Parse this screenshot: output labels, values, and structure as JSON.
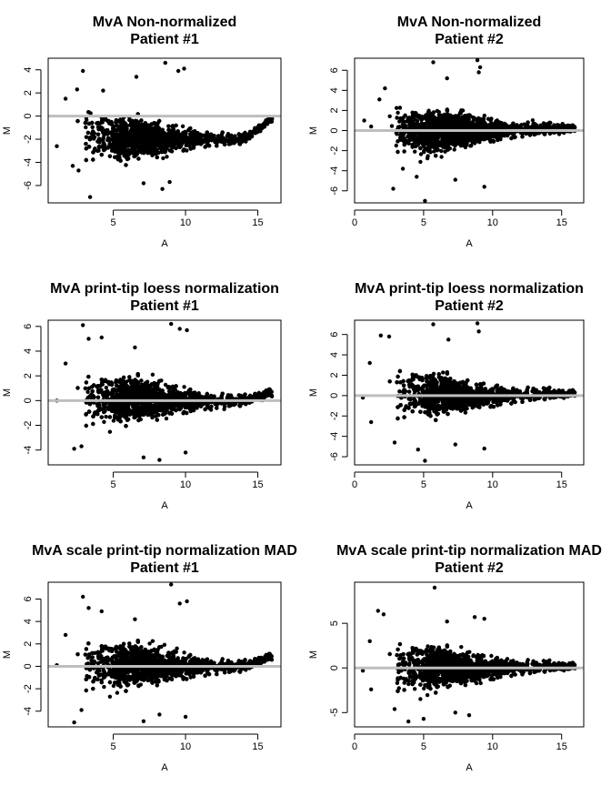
{
  "chart_data": [
    {
      "type": "scatter",
      "title": "MvA Non-normalized",
      "subtitle": "Patient #1",
      "xlabel": "A",
      "ylabel": "M",
      "xlim": [
        0.5,
        16.6
      ],
      "ylim": [
        -7.5,
        5
      ],
      "xticks": [
        5,
        10,
        15
      ],
      "yticks": [
        -6,
        -4,
        -2,
        0,
        2,
        4
      ],
      "xtick_labels": [
        "5",
        "10",
        "15"
      ],
      "ytick_labels": [
        "-6",
        "-4",
        "-2",
        "0",
        "2",
        "4"
      ],
      "reference_line": 0,
      "trend": [
        [
          2.5,
          -1.5
        ],
        [
          5,
          -2.0
        ],
        [
          8,
          -1.9
        ],
        [
          11,
          -1.9
        ],
        [
          14,
          -2.0
        ],
        [
          15.9,
          -0.3
        ]
      ],
      "spread": [
        [
          2.5,
          1.9
        ],
        [
          5,
          1.6
        ],
        [
          8,
          1.3
        ],
        [
          11,
          0.6
        ],
        [
          14,
          0.35
        ],
        [
          16,
          0.25
        ]
      ],
      "outliers": [
        [
          2.9,
          3.9
        ],
        [
          8.6,
          4.6
        ],
        [
          9.5,
          3.9
        ],
        [
          9.9,
          4.1
        ],
        [
          2.6,
          -4.7
        ],
        [
          3.4,
          -7.0
        ],
        [
          2.2,
          -4.3
        ],
        [
          4.3,
          2.2
        ],
        [
          1.7,
          1.5
        ],
        [
          2.5,
          2.3
        ],
        [
          8.4,
          -6.3
        ],
        [
          8.9,
          -5.7
        ],
        [
          1.1,
          -2.6
        ],
        [
          6.6,
          3.4
        ],
        [
          7.1,
          -5.8
        ]
      ]
    },
    {
      "type": "scatter",
      "title": "MvA Non-normalized",
      "subtitle": "Patient #2",
      "xlabel": "A",
      "ylabel": "M",
      "xlim": [
        0,
        16.6
      ],
      "ylim": [
        -7.2,
        7.2
      ],
      "xticks": [
        0,
        5,
        10,
        15
      ],
      "yticks": [
        -6,
        -4,
        -2,
        0,
        2,
        4,
        6
      ],
      "xtick_labels": [
        "0",
        "5",
        "10",
        "15"
      ],
      "ytick_labels": [
        "-6",
        "-4",
        "-2",
        "0",
        "2",
        "4",
        "6"
      ],
      "reference_line": 0,
      "trend": [
        [
          2.5,
          0.3
        ],
        [
          5,
          -0.2
        ],
        [
          8,
          0.0
        ],
        [
          11,
          0.1
        ],
        [
          14,
          0.2
        ],
        [
          16,
          0.2
        ]
      ],
      "spread": [
        [
          2.5,
          2.0
        ],
        [
          5,
          1.7
        ],
        [
          8,
          1.3
        ],
        [
          11,
          0.7
        ],
        [
          14,
          0.45
        ],
        [
          16,
          0.3
        ]
      ],
      "outliers": [
        [
          5.7,
          6.8
        ],
        [
          8.9,
          7.0
        ],
        [
          9.1,
          6.3
        ],
        [
          0.7,
          1.0
        ],
        [
          4.5,
          -4.6
        ],
        [
          5.1,
          -7.0
        ],
        [
          2.8,
          -5.8
        ],
        [
          2.2,
          4.2
        ],
        [
          1.8,
          3.1
        ],
        [
          9.4,
          -5.6
        ],
        [
          9.0,
          5.8
        ],
        [
          3.5,
          -3.8
        ],
        [
          6.7,
          5.2
        ],
        [
          7.3,
          -4.9
        ],
        [
          1.2,
          0.4
        ]
      ]
    },
    {
      "type": "scatter",
      "title": "MvA print-tip loess normalization",
      "subtitle": "Patient #1",
      "xlabel": "A",
      "ylabel": "M",
      "xlim": [
        0.5,
        16.6
      ],
      "ylim": [
        -5.2,
        6.5
      ],
      "xticks": [
        5,
        10,
        15
      ],
      "yticks": [
        -4,
        -2,
        0,
        2,
        4,
        6
      ],
      "xtick_labels": [
        "5",
        "10",
        "15"
      ],
      "ytick_labels": [
        "-4",
        "-2",
        "0",
        "2",
        "4",
        "6"
      ],
      "reference_line": 0,
      "trend": [
        [
          2.5,
          0.0
        ],
        [
          5,
          0.1
        ],
        [
          8,
          0.1
        ],
        [
          11,
          0.05
        ],
        [
          14,
          0.0
        ],
        [
          15.7,
          0.6
        ]
      ],
      "spread": [
        [
          2.5,
          1.8
        ],
        [
          5,
          1.5
        ],
        [
          8,
          1.3
        ],
        [
          11,
          0.6
        ],
        [
          14,
          0.35
        ],
        [
          16,
          0.3
        ]
      ],
      "outliers": [
        [
          2.9,
          6.1
        ],
        [
          9.0,
          6.2
        ],
        [
          9.6,
          5.8
        ],
        [
          10.1,
          5.7
        ],
        [
          2.3,
          -3.9
        ],
        [
          8.2,
          -4.8
        ],
        [
          10.0,
          -4.2
        ],
        [
          3.3,
          5.0
        ],
        [
          4.2,
          5.1
        ],
        [
          1.7,
          3.0
        ],
        [
          6.5,
          4.3
        ],
        [
          1.1,
          0.0
        ],
        [
          2.8,
          -3.7
        ],
        [
          7.1,
          -4.6
        ]
      ]
    },
    {
      "type": "scatter",
      "title": "MvA print-tip loess normalization",
      "subtitle": "Patient #2",
      "xlabel": "A",
      "ylabel": "M",
      "xlim": [
        0,
        16.6
      ],
      "ylim": [
        -6.8,
        7.4
      ],
      "xticks": [
        0,
        5,
        10,
        15
      ],
      "yticks": [
        -6,
        -4,
        -2,
        0,
        2,
        4,
        6
      ],
      "xtick_labels": [
        "0",
        "5",
        "10",
        "15"
      ],
      "ytick_labels": [
        "-6",
        "-4",
        "-2",
        "0",
        "2",
        "4",
        "6"
      ],
      "reference_line": 0,
      "trend": [
        [
          2.5,
          0.2
        ],
        [
          5,
          0.1
        ],
        [
          8,
          0.0
        ],
        [
          11,
          0.1
        ],
        [
          14,
          0.2
        ],
        [
          16,
          0.2
        ]
      ],
      "spread": [
        [
          2.5,
          2.1
        ],
        [
          5,
          1.8
        ],
        [
          8,
          1.3
        ],
        [
          11,
          0.7
        ],
        [
          14,
          0.45
        ],
        [
          16,
          0.3
        ]
      ],
      "outliers": [
        [
          5.7,
          7.0
        ],
        [
          8.9,
          7.1
        ],
        [
          9.0,
          6.3
        ],
        [
          0.6,
          -0.2
        ],
        [
          5.1,
          -6.4
        ],
        [
          4.6,
          -5.3
        ],
        [
          2.9,
          -4.6
        ],
        [
          1.9,
          5.9
        ],
        [
          2.5,
          5.8
        ],
        [
          9.4,
          -5.2
        ],
        [
          1.2,
          -2.6
        ],
        [
          1.1,
          3.2
        ],
        [
          6.8,
          5.5
        ],
        [
          7.3,
          -4.8
        ]
      ]
    },
    {
      "type": "scatter",
      "title": "MvA scale print-tip normalization MAD",
      "subtitle": "Patient #1",
      "xlabel": "A",
      "ylabel": "M",
      "xlim": [
        0.5,
        16.6
      ],
      "ylim": [
        -5.4,
        7.5
      ],
      "xticks": [
        5,
        10,
        15
      ],
      "yticks": [
        -4,
        -2,
        0,
        2,
        4,
        6
      ],
      "xtick_labels": [
        "5",
        "10",
        "15"
      ],
      "ytick_labels": [
        "-4",
        "-2",
        "0",
        "2",
        "4",
        "6"
      ],
      "reference_line": 0,
      "trend": [
        [
          2.5,
          0.0
        ],
        [
          5,
          0.1
        ],
        [
          8,
          0.1
        ],
        [
          11,
          0.05
        ],
        [
          14,
          0.0
        ],
        [
          15.7,
          0.8
        ]
      ],
      "spread": [
        [
          2.5,
          1.9
        ],
        [
          5,
          1.6
        ],
        [
          8,
          1.4
        ],
        [
          11,
          0.7
        ],
        [
          14,
          0.4
        ],
        [
          16,
          0.3
        ]
      ],
      "outliers": [
        [
          2.9,
          6.2
        ],
        [
          9.0,
          7.3
        ],
        [
          9.6,
          5.6
        ],
        [
          10.1,
          5.8
        ],
        [
          2.3,
          -5.0
        ],
        [
          8.2,
          -4.3
        ],
        [
          10.0,
          -4.5
        ],
        [
          3.3,
          5.2
        ],
        [
          4.2,
          4.9
        ],
        [
          1.7,
          2.8
        ],
        [
          6.5,
          4.2
        ],
        [
          1.1,
          0.1
        ],
        [
          2.8,
          -3.9
        ],
        [
          7.1,
          -4.9
        ]
      ]
    },
    {
      "type": "scatter",
      "title": "MvA scale print-tip normalization MAD",
      "subtitle": "Patient #2",
      "xlabel": "A",
      "ylabel": "M",
      "xlim": [
        0,
        16.6
      ],
      "ylim": [
        -6.6,
        9.6
      ],
      "xticks": [
        0,
        5,
        10,
        15
      ],
      "yticks": [
        -5,
        0,
        5
      ],
      "xtick_labels": [
        "0",
        "5",
        "10",
        "15"
      ],
      "ytick_labels": [
        "-5",
        "0",
        "5"
      ],
      "reference_line": 0,
      "trend": [
        [
          2.5,
          0.2
        ],
        [
          5,
          0.0
        ],
        [
          8,
          0.0
        ],
        [
          11,
          0.1
        ],
        [
          14,
          0.2
        ],
        [
          16,
          0.2
        ]
      ],
      "spread": [
        [
          2.5,
          2.4
        ],
        [
          5,
          2.0
        ],
        [
          8,
          1.5
        ],
        [
          11,
          0.8
        ],
        [
          14,
          0.5
        ],
        [
          16,
          0.35
        ]
      ],
      "outliers": [
        [
          5.8,
          9.0
        ],
        [
          1.7,
          6.4
        ],
        [
          2.1,
          6.0
        ],
        [
          8.7,
          5.7
        ],
        [
          0.6,
          -0.3
        ],
        [
          5.0,
          -5.7
        ],
        [
          3.9,
          -6.0
        ],
        [
          8.3,
          -5.3
        ],
        [
          1.1,
          3.0
        ],
        [
          1.2,
          -2.4
        ],
        [
          6.7,
          5.2
        ],
        [
          7.3,
          -5.0
        ],
        [
          9.4,
          5.5
        ],
        [
          2.9,
          -4.6
        ]
      ]
    }
  ]
}
